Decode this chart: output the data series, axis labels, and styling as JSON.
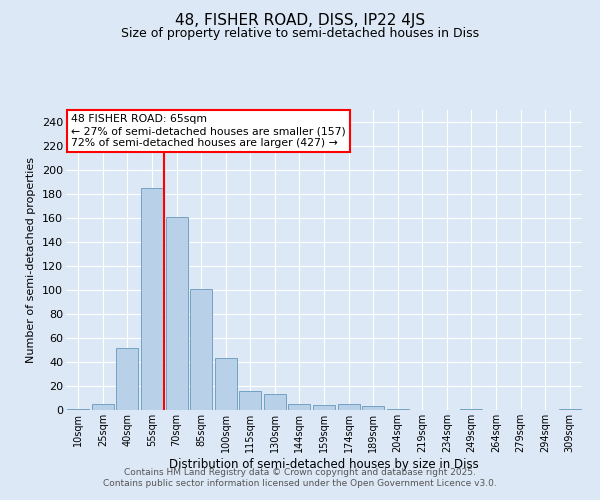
{
  "title1": "48, FISHER ROAD, DISS, IP22 4JS",
  "title2": "Size of property relative to semi-detached houses in Diss",
  "xlabel": "Distribution of semi-detached houses by size in Diss",
  "ylabel": "Number of semi-detached properties",
  "bar_labels": [
    "10sqm",
    "25sqm",
    "40sqm",
    "55sqm",
    "70sqm",
    "85sqm",
    "100sqm",
    "115sqm",
    "130sqm",
    "144sqm",
    "159sqm",
    "174sqm",
    "189sqm",
    "204sqm",
    "219sqm",
    "234sqm",
    "249sqm",
    "264sqm",
    "279sqm",
    "294sqm",
    "309sqm"
  ],
  "bar_values": [
    1,
    5,
    52,
    185,
    161,
    101,
    43,
    16,
    13,
    5,
    4,
    5,
    3,
    1,
    0,
    0,
    1,
    0,
    0,
    0,
    1
  ],
  "bar_color": "#b8d0e8",
  "bar_edge_color": "#6699bb",
  "background_color": "#dce8f5",
  "grid_color": "#ffffff",
  "vline_color": "red",
  "vline_pos": 3.5,
  "annotation_title": "48 FISHER ROAD: 65sqm",
  "annotation_line1": "← 27% of semi-detached houses are smaller (157)",
  "annotation_line2": "72% of semi-detached houses are larger (427) →",
  "annotation_box_color": "#ffffff",
  "annotation_edge_color": "red",
  "footer_line1": "Contains HM Land Registry data © Crown copyright and database right 2025.",
  "footer_line2": "Contains public sector information licensed under the Open Government Licence v3.0.",
  "ylim": [
    0,
    250
  ],
  "yticks": [
    0,
    20,
    40,
    60,
    80,
    100,
    120,
    140,
    160,
    180,
    200,
    220,
    240
  ]
}
